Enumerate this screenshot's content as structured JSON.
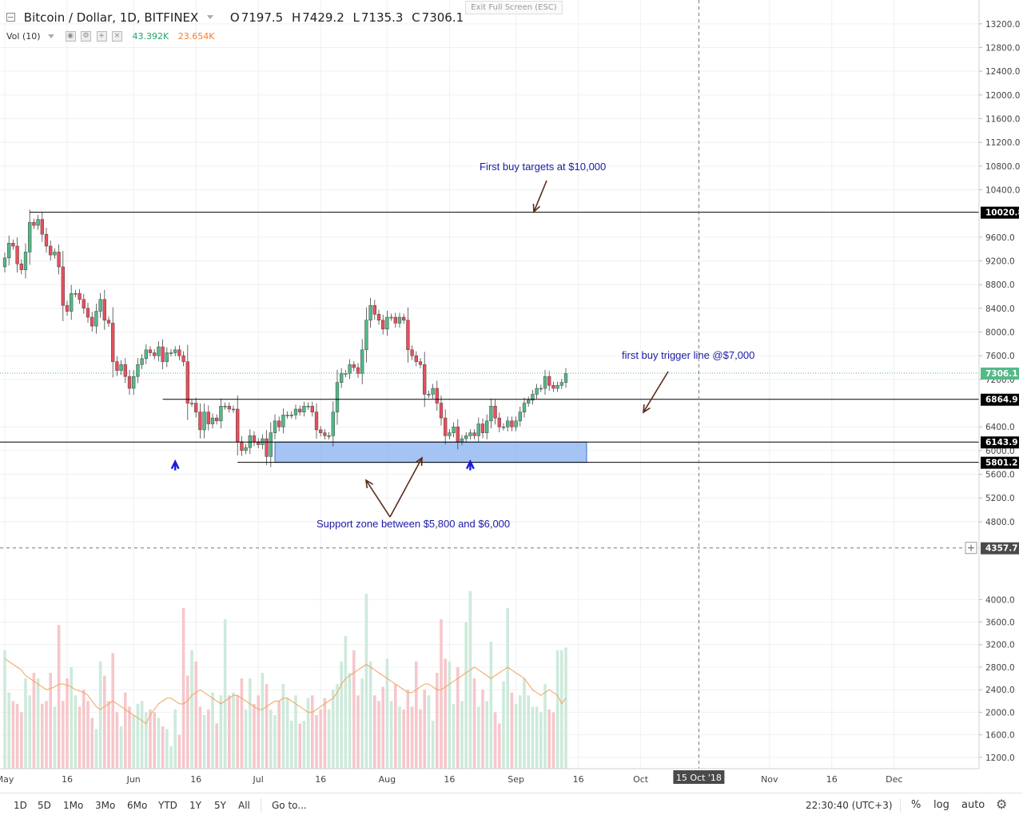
{
  "header": {
    "symbol_title": "Bitcoin / Dollar, 1D, BITFINEX",
    "ohlc": [
      {
        "label": "O",
        "value": "7197.5"
      },
      {
        "label": "H",
        "value": "7429.2"
      },
      {
        "label": "L",
        "value": "7135.3"
      },
      {
        "label": "C",
        "value": "7306.1"
      }
    ],
    "volume_indicator": "Vol (10)",
    "volume_value": "43.392K",
    "volume_ma_value": "23.654K",
    "exit_fullscreen": "Exit Full Screen (ESC)"
  },
  "annotations": {
    "target": "First buy targets at $10,000",
    "trigger": "first buy trigger line @$7,000",
    "support": "Support zone between $5,800 and $6,000"
  },
  "bottom_bar": {
    "timeframes": [
      "1D",
      "5D",
      "1Mo",
      "3Mo",
      "6Mo",
      "YTD",
      "1Y",
      "5Y",
      "All"
    ],
    "goto": "Go to...",
    "clock": "22:30:40 (UTC+3)",
    "percent": "%",
    "log": "log",
    "auto": "auto"
  },
  "colors": {
    "up": "#53b987",
    "down": "#eb4d5c",
    "vol_up": "#cdeadb",
    "vol_down": "#f6c7cb",
    "vol_ma": "#f0a35e",
    "annotation": "#1a1aa6",
    "zone_fill": "#8fb4f0",
    "arrow": "#5a2a1a"
  },
  "chart_data": {
    "type": "candlestick",
    "title": "Bitcoin / Dollar, 1D, BITFINEX",
    "x_ticks": [
      "May",
      "16",
      "Jun",
      "16",
      "Jul",
      "16",
      "Aug",
      "16",
      "Sep",
      "16",
      "Oct",
      "15 Oct '18",
      "Nov",
      "16",
      "Dec"
    ],
    "price_ticks": [
      "13200.0",
      "12800.0",
      "12400.0",
      "12000.0",
      "11600.0",
      "11200.0",
      "10800.0",
      "10400.0",
      "9600.0",
      "9200.0",
      "8800.0",
      "8400.0",
      "8000.0",
      "7600.0",
      "7200.0",
      "6400.0",
      "6000.0",
      "5600.0",
      "5200.0",
      "4800.0"
    ],
    "volume_ticks": [
      "4000.0",
      "3600.0",
      "3200.0",
      "2800.0",
      "2400.0",
      "2000.0",
      "1600.0",
      "1200.0"
    ],
    "price_labels": {
      "resistance": "10020.8",
      "last": "7306.1",
      "trigger": "6864.9",
      "zone_top": "6143.9",
      "zone_bottom": "5801.2",
      "crosshair": "4357.7"
    },
    "levels": {
      "resistance": 10020.8,
      "trigger": 6864.9,
      "zone_top": 6143.9,
      "zone_bottom": 5801.2,
      "last": 7306.1,
      "crosshair": 4357.7
    },
    "price_range": [
      4300,
      13400
    ],
    "volume_range": [
      1000,
      4500
    ],
    "start_date": "2018-05-01",
    "closes": [
      9250,
      9500,
      9450,
      9150,
      9050,
      9350,
      9850,
      9800,
      9900,
      9650,
      9450,
      9300,
      9350,
      9100,
      8450,
      8350,
      8650,
      8650,
      8550,
      8400,
      8250,
      8100,
      8350,
      8550,
      8200,
      8150,
      7500,
      7350,
      7450,
      7250,
      7050,
      7250,
      7450,
      7550,
      7700,
      7650,
      7600,
      7750,
      7500,
      7650,
      7650,
      7700,
      7600,
      7500,
      6800,
      6800,
      6650,
      6350,
      6650,
      6450,
      6550,
      6500,
      6750,
      6750,
      6700,
      6700,
      6150,
      6000,
      6050,
      6250,
      6150,
      6100,
      6200,
      5900,
      6300,
      6500,
      6400,
      6600,
      6600,
      6600,
      6700,
      6650,
      6750,
      6750,
      6650,
      6350,
      6300,
      6250,
      6250,
      6650,
      7150,
      7300,
      7300,
      7450,
      7400,
      7300,
      7700,
      8200,
      8450,
      8300,
      8200,
      8050,
      8250,
      8250,
      8150,
      8250,
      8200,
      7700,
      7600,
      7500,
      7450,
      6950,
      6950,
      7050,
      6800,
      6550,
      6250,
      6300,
      6400,
      6150,
      6200,
      6250,
      6300,
      6250,
      6450,
      6300,
      6500,
      6750,
      6550,
      6400,
      6400,
      6500,
      6400,
      6500,
      6650,
      6800,
      6850,
      6950,
      7050,
      7050,
      7250,
      7100,
      7050,
      7100,
      7150,
      7300
    ],
    "volumes": [
      3100,
      2350,
      2200,
      2150,
      2000,
      2600,
      2300,
      2700,
      2600,
      2150,
      2200,
      2700,
      2100,
      3550,
      2200,
      2600,
      2800,
      2300,
      2100,
      2400,
      2200,
      1900,
      1700,
      2900,
      2650,
      2200,
      3050,
      2000,
      1750,
      2350,
      2100,
      1950,
      2150,
      2200,
      2000,
      2050,
      2000,
      1900,
      1750,
      1700,
      1400,
      2050,
      1600,
      3850,
      2650,
      3100,
      2900,
      2100,
      1950,
      2050,
      2350,
      1800,
      2300,
      3650,
      2300,
      2350,
      2300,
      2600,
      2050,
      2600,
      2150,
      2300,
      2700,
      2500,
      2050,
      1950,
      2200,
      2500,
      2250,
      1850,
      2300,
      1800,
      1850,
      2250,
      2300,
      1950,
      2050,
      2250,
      2050,
      2400,
      2500,
      2900,
      3350,
      2700,
      3100,
      2300,
      2600,
      4100,
      2900,
      2300,
      2200,
      2450,
      2950,
      2200,
      2500,
      2100,
      2050,
      2400,
      2100,
      2900,
      2050,
      2400,
      2300,
      1850,
      2700,
      3650,
      2950,
      2900,
      2150,
      2800,
      2200,
      3600,
      4150,
      2600,
      2100,
      2400,
      2200,
      3250,
      2000,
      1800,
      2550,
      3850,
      2350,
      2150,
      2300,
      2600,
      2300,
      2100,
      2100,
      2000,
      2500,
      2050,
      2000,
      3100,
      3100,
      3150
    ],
    "volume_ma": [
      2950,
      2900,
      2850,
      2800,
      2750,
      2650,
      2600,
      2550,
      2500,
      2450,
      2400,
      2420,
      2450,
      2500,
      2500,
      2480,
      2450,
      2400,
      2380,
      2350,
      2300,
      2200,
      2100,
      2050,
      2100,
      2150,
      2200,
      2150,
      2100,
      2050,
      2000,
      1950,
      1900,
      1850,
      1800,
      1950,
      2050,
      2150,
      2200,
      2250,
      2250,
      2200,
      2150,
      2150,
      2200,
      2300,
      2350,
      2400,
      2350,
      2300,
      2250,
      2200,
      2150,
      2200,
      2250,
      2300,
      2300,
      2250,
      2200,
      2150,
      2100,
      2050,
      2050,
      2100,
      2150,
      2200,
      2200,
      2250,
      2250,
      2200,
      2150,
      2100,
      2050,
      2000,
      2000,
      2050,
      2100,
      2150,
      2200,
      2250,
      2350,
      2500,
      2600,
      2650,
      2700,
      2750,
      2800,
      2850,
      2800,
      2750,
      2700,
      2650,
      2600,
      2550,
      2500,
      2450,
      2400,
      2350,
      2350,
      2400,
      2450,
      2500,
      2500,
      2450,
      2400,
      2400,
      2450,
      2500,
      2550,
      2600,
      2650,
      2700,
      2750,
      2800,
      2750,
      2700,
      2650,
      2600,
      2650,
      2700,
      2750,
      2800,
      2750,
      2700,
      2650,
      2600,
      2500,
      2400,
      2350,
      2300,
      2350,
      2400,
      2350,
      2300,
      2150,
      2250
    ],
    "support_markers": [
      {
        "date": "2018-06-11"
      },
      {
        "date": "2018-08-21"
      }
    ]
  }
}
